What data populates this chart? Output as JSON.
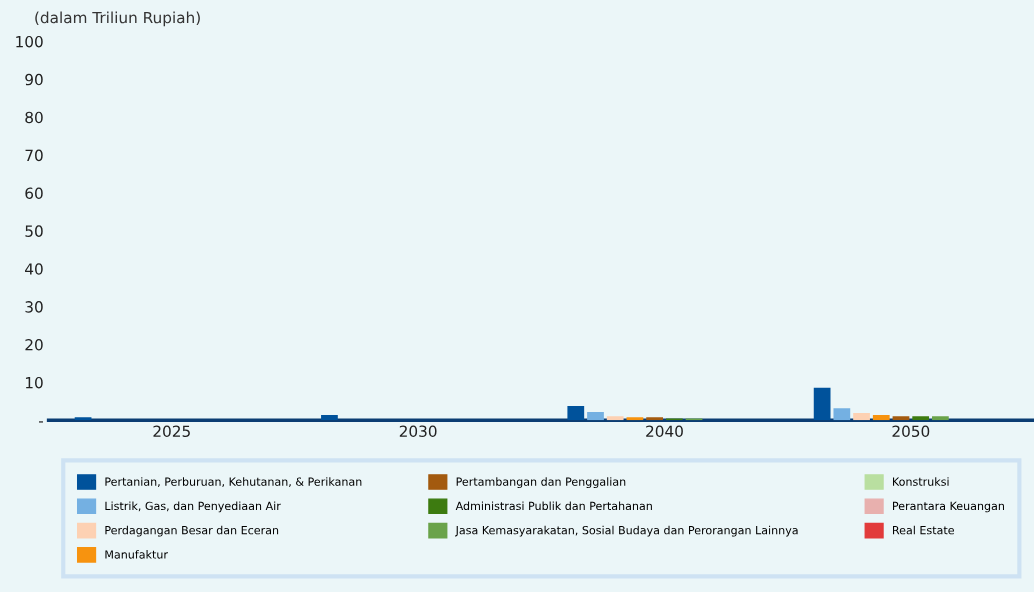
{
  "chart_data": {
    "type": "bar",
    "ylabel": "(dalam Triliun Rupiah)",
    "categories": [
      "2025",
      "2030",
      "2040",
      "2050"
    ],
    "series": [
      {
        "name": "Pertanian, Perburuan, Kehutanan, & Perikanan",
        "color": "#00529b",
        "values": [
          0.8,
          1.4,
          3.8,
          8.6
        ]
      },
      {
        "name": "Listrik, Gas, dan Penyediaan Air",
        "color": "#74b0e2",
        "values": [
          0,
          0,
          2.2,
          3.2
        ]
      },
      {
        "name": "Perdagangan Besar dan Eceran",
        "color": "#fdd1b3",
        "values": [
          0,
          0,
          1.1,
          1.9
        ]
      },
      {
        "name": "Manufaktur",
        "color": "#f7930f",
        "values": [
          0,
          0,
          0.8,
          1.4
        ]
      },
      {
        "name": "Pertambangan dan Penggalian",
        "color": "#a35a0f",
        "values": [
          0,
          0,
          0.8,
          1.1
        ]
      },
      {
        "name": "Administrasi Publik dan Pertahanan",
        "color": "#3d7b10",
        "values": [
          0,
          0,
          0.5,
          1.1
        ]
      },
      {
        "name": "Jasa Kemasyarakatan, Sosial Budaya dan Perorangan Lainnya",
        "color": "#6aa34a",
        "values": [
          0,
          0,
          0.5,
          1.1
        ]
      },
      {
        "name": "Konstruksi",
        "color": "#b9dfa0",
        "values": [
          0,
          0,
          0,
          0
        ]
      },
      {
        "name": "Perantara Keuangan",
        "color": "#e8b0ae",
        "values": [
          0,
          0,
          0,
          0
        ]
      },
      {
        "name": "Real Estate",
        "color": "#e23b3b",
        "values": [
          0,
          0,
          0,
          0
        ]
      }
    ],
    "ylim": [
      0,
      100
    ],
    "yticks": [
      {
        "value": 0,
        "label": "-"
      },
      10,
      20,
      30,
      40,
      50,
      60,
      70,
      80,
      90,
      100
    ],
    "grid": false,
    "legend": "bottom"
  }
}
